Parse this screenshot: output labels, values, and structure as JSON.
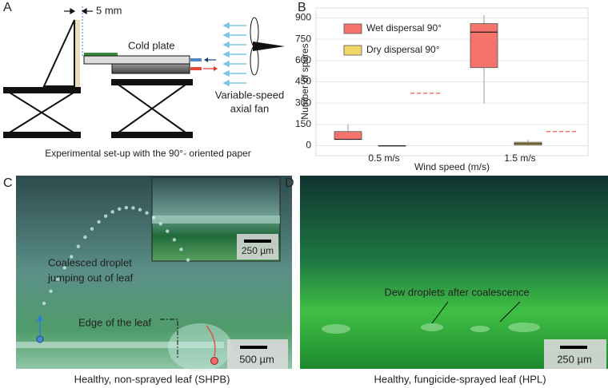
{
  "panel_a": {
    "label": "A",
    "gap": "5 mm",
    "plate": "Cold plate",
    "fan": [
      "Variable-speed",
      "axial fan"
    ],
    "caption": "Experimental set-up with the 90°- oriented paper"
  },
  "chart_data": {
    "type": "box",
    "label": "B",
    "x_label": "Wind speed (m/s)",
    "y_label": "Number of spores",
    "categories": [
      "0.5 m/s",
      "1.5 m/s"
    ],
    "series": [
      {
        "name": "Wet dispersal 90°",
        "color": "#f4736b",
        "boxes": [
          {
            "min": 40,
            "q1": 45,
            "median": 45,
            "q3": 100,
            "max": 150
          },
          {
            "min": 300,
            "q1": 550,
            "median": 800,
            "q3": 860,
            "max": 920
          }
        ]
      },
      {
        "name": "Dry dispersal 90°",
        "color": "#f3d66a",
        "boxes": [
          {
            "min": 0,
            "q1": 0,
            "median": 0,
            "q3": 0,
            "max": 0
          },
          {
            "min": 0,
            "q1": 5,
            "median": 15,
            "q3": 25,
            "max": 40
          }
        ]
      }
    ],
    "reference": {
      "color": "#f4736b",
      "values": [
        370,
        100
      ]
    },
    "ylim": [
      -70,
      970
    ],
    "yticks": [
      0,
      150,
      300,
      450,
      600,
      750,
      900
    ],
    "grid": true,
    "legend": "top-left"
  },
  "panel_c": {
    "label": "C",
    "jump": [
      "Coalesced droplet",
      "jumping out of leaf"
    ],
    "edge": "Edge of the leaf",
    "inset_scale": "250 µm",
    "scale": "500 µm",
    "caption": "Healthy, non-sprayed leaf (SHPB)"
  },
  "panel_d": {
    "label": "D",
    "dew": "Dew droplets after coalescence",
    "scale": "250 µm",
    "caption": "Healthy, fungicide-sprayed leaf (HPL)"
  }
}
